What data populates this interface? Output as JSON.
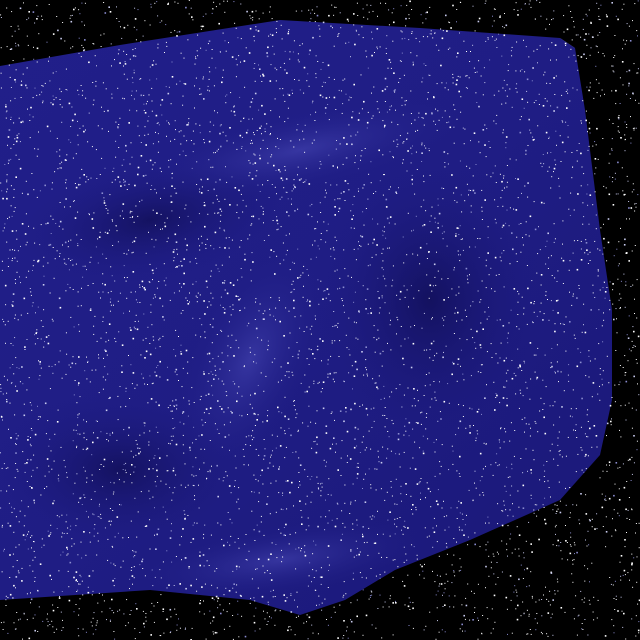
{
  "scene": {
    "description_colors": {
      "space": "#000000",
      "fabric": "#1e1c86",
      "fabric_highlight": "#3a3aa8",
      "fabric_shadow": "#120f5c",
      "star": "#ffffff"
    }
  }
}
